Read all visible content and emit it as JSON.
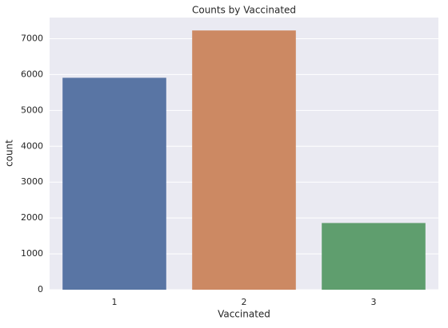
{
  "chart_data": {
    "type": "bar",
    "title": "Counts by Vaccinated",
    "x_label": "Vaccinated",
    "y_label": "count",
    "categories": [
      "1",
      "2",
      "3"
    ],
    "values": [
      5910,
      7230,
      1860
    ],
    "colors": [
      "#5975a4",
      "#cc8963",
      "#5f9e6e"
    ],
    "ylim": [
      0,
      7590
    ],
    "yticks": [
      0,
      1000,
      2000,
      3000,
      4000,
      5000,
      6000,
      7000
    ],
    "grid": true
  }
}
